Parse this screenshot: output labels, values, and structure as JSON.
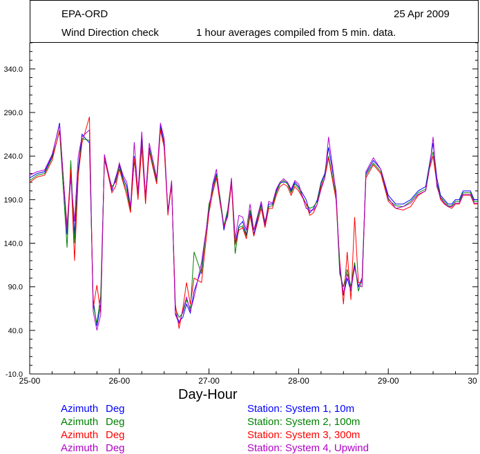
{
  "header": {
    "station": "EPA-ORD",
    "date": "25 Apr 2009",
    "subtitle": "Wind Direction check",
    "description": "1 hour averages compiled from 5 min. data."
  },
  "chart_data": {
    "type": "line",
    "xlabel": "Day-Hour",
    "ylabel": "",
    "x_ticks": [
      "25-00",
      "26-00",
      "27-00",
      "28-00",
      "29-00",
      "30"
    ],
    "y_ticks": [
      "-10.0",
      "40.0",
      "90.0",
      "140.0",
      "190.0",
      "240.0",
      "290.0",
      "340.0"
    ],
    "xlim": [
      0,
      120
    ],
    "ylim": [
      -10,
      370
    ],
    "grid": false,
    "legend": "bottom",
    "series": [
      {
        "name": "Station: System 1, 10m",
        "variable": "Azimuth",
        "unit": "Deg",
        "color": "#0000ff",
        "x": [
          0,
          2,
          4,
          6,
          8,
          10,
          11,
          12,
          13,
          14,
          16,
          17,
          18,
          19,
          20,
          22,
          23,
          24,
          25,
          26,
          27,
          28,
          29,
          30,
          31,
          32,
          34,
          35,
          36,
          37,
          38,
          39,
          40,
          41,
          42,
          43,
          44,
          46,
          48,
          49,
          50,
          51,
          52,
          53,
          54,
          55,
          56,
          57,
          58,
          59,
          60,
          62,
          63,
          64,
          65,
          66,
          67,
          68,
          69,
          70,
          71,
          72,
          74,
          75,
          76,
          77,
          78,
          79,
          80,
          82,
          83,
          84,
          85,
          86,
          87,
          88,
          89,
          90,
          92,
          94,
          96,
          98,
          100,
          102,
          104,
          106,
          107,
          108,
          109,
          110,
          111,
          112,
          113,
          114,
          115,
          116,
          118,
          119,
          120
        ],
        "values": [
          215,
          220,
          222,
          240,
          278,
          150,
          225,
          150,
          225,
          265,
          255,
          75,
          45,
          70,
          240,
          200,
          215,
          230,
          215,
          205,
          180,
          240,
          195,
          260,
          190,
          250,
          210,
          275,
          255,
          175,
          210,
          60,
          50,
          55,
          70,
          60,
          85,
          110,
          180,
          205,
          220,
          190,
          155,
          175,
          210,
          140,
          160,
          165,
          150,
          175,
          150,
          185,
          160,
          185,
          185,
          200,
          210,
          210,
          210,
          200,
          210,
          205,
          190,
          175,
          180,
          190,
          210,
          220,
          250,
          200,
          110,
          80,
          100,
          85,
          115,
          90,
          100,
          220,
          235,
          225,
          195,
          185,
          185,
          190,
          200,
          205,
          230,
          255,
          215,
          195,
          190,
          185,
          185,
          190,
          190,
          200,
          200,
          190,
          190
        ]
      },
      {
        "name": "Station: System 2, 100m",
        "variable": "Azimuth",
        "unit": "Deg",
        "color": "#008000",
        "x": [
          0,
          2,
          4,
          6,
          8,
          10,
          11,
          12,
          13,
          14,
          16,
          17,
          18,
          19,
          20,
          22,
          23,
          24,
          25,
          26,
          27,
          28,
          29,
          30,
          31,
          32,
          34,
          35,
          36,
          37,
          38,
          39,
          40,
          41,
          42,
          43,
          44,
          46,
          48,
          49,
          50,
          51,
          52,
          53,
          54,
          55,
          56,
          57,
          58,
          59,
          60,
          62,
          63,
          64,
          65,
          66,
          67,
          68,
          69,
          70,
          71,
          72,
          74,
          75,
          76,
          77,
          78,
          79,
          80,
          82,
          83,
          84,
          85,
          86,
          87,
          88,
          89,
          90,
          92,
          94,
          96,
          98,
          100,
          102,
          104,
          106,
          107,
          108,
          109,
          110,
          111,
          112,
          113,
          114,
          115,
          116,
          118,
          119,
          120
        ],
        "values": [
          212,
          218,
          220,
          238,
          268,
          135,
          235,
          140,
          220,
          260,
          258,
          70,
          48,
          80,
          235,
          205,
          210,
          228,
          212,
          200,
          178,
          235,
          200,
          255,
          195,
          248,
          212,
          272,
          250,
          178,
          205,
          65,
          55,
          60,
          75,
          65,
          130,
          105,
          185,
          200,
          218,
          192,
          160,
          178,
          212,
          128,
          158,
          160,
          148,
          178,
          155,
          183,
          165,
          182,
          183,
          198,
          208,
          212,
          208,
          198,
          208,
          203,
          185,
          180,
          182,
          188,
          208,
          218,
          240,
          195,
          105,
          90,
          110,
          90,
          118,
          85,
          98,
          218,
          232,
          222,
          190,
          183,
          182,
          188,
          198,
          202,
          228,
          245,
          210,
          193,
          188,
          183,
          183,
          188,
          188,
          198,
          198,
          188,
          188
        ]
      },
      {
        "name": "Station: System 3, 300m",
        "variable": "Azimuth",
        "unit": "Deg",
        "color": "#ff0000",
        "x": [
          0,
          2,
          4,
          6,
          8,
          10,
          11,
          12,
          13,
          14,
          16,
          17,
          18,
          19,
          20,
          22,
          23,
          24,
          25,
          26,
          27,
          28,
          29,
          30,
          31,
          32,
          34,
          35,
          36,
          37,
          38,
          39,
          40,
          41,
          42,
          43,
          44,
          46,
          48,
          49,
          50,
          51,
          52,
          53,
          54,
          55,
          56,
          57,
          58,
          59,
          60,
          62,
          63,
          64,
          65,
          66,
          67,
          68,
          69,
          70,
          71,
          72,
          74,
          75,
          76,
          77,
          78,
          79,
          80,
          82,
          83,
          84,
          85,
          86,
          87,
          88,
          89,
          90,
          92,
          94,
          96,
          98,
          100,
          102,
          104,
          106,
          107,
          108,
          109,
          110,
          111,
          112,
          113,
          114,
          115,
          116,
          118,
          119,
          120
        ],
        "values": [
          210,
          216,
          218,
          235,
          270,
          160,
          225,
          120,
          218,
          255,
          285,
          65,
          92,
          60,
          238,
          198,
          205,
          225,
          210,
          195,
          175,
          238,
          190,
          250,
          185,
          245,
          208,
          270,
          250,
          172,
          208,
          70,
          42,
          65,
          95,
          70,
          100,
          95,
          175,
          198,
          215,
          185,
          160,
          170,
          208,
          138,
          155,
          158,
          145,
          172,
          148,
          180,
          158,
          180,
          180,
          195,
          205,
          208,
          205,
          195,
          205,
          200,
          185,
          172,
          175,
          185,
          205,
          215,
          238,
          190,
          120,
          70,
          130,
          75,
          170,
          95,
          95,
          215,
          230,
          220,
          188,
          180,
          178,
          182,
          195,
          200,
          225,
          240,
          208,
          190,
          185,
          182,
          180,
          185,
          185,
          195,
          195,
          185,
          185
        ]
      },
      {
        "name": "Station: System 4, Upwind",
        "variable": "Azimuth",
        "unit": "Deg",
        "color": "#b000c8",
        "x": [
          0,
          2,
          4,
          6,
          8,
          10,
          11,
          12,
          13,
          14,
          16,
          17,
          18,
          19,
          20,
          22,
          23,
          24,
          25,
          26,
          27,
          28,
          29,
          30,
          31,
          32,
          34,
          35,
          36,
          37,
          38,
          39,
          40,
          41,
          42,
          43,
          44,
          46,
          48,
          49,
          50,
          51,
          52,
          53,
          54,
          55,
          56,
          57,
          58,
          59,
          60,
          62,
          63,
          64,
          65,
          66,
          67,
          68,
          69,
          70,
          71,
          72,
          74,
          75,
          76,
          77,
          78,
          79,
          80,
          82,
          83,
          84,
          85,
          86,
          87,
          88,
          89,
          90,
          92,
          94,
          96,
          98,
          100,
          102,
          104,
          106,
          107,
          108,
          109,
          110,
          111,
          112,
          113,
          114,
          115,
          116,
          118,
          119,
          120
        ],
        "values": [
          218,
          222,
          224,
          242,
          276,
          155,
          215,
          165,
          240,
          262,
          270,
          62,
          40,
          58,
          242,
          202,
          212,
          232,
          218,
          210,
          182,
          256,
          198,
          268,
          192,
          255,
          215,
          278,
          260,
          176,
          212,
          58,
          48,
          62,
          78,
          62,
          78,
          118,
          178,
          208,
          225,
          188,
          158,
          172,
          215,
          145,
          172,
          170,
          155,
          185,
          155,
          188,
          162,
          188,
          186,
          202,
          210,
          214,
          210,
          202,
          212,
          208,
          180,
          178,
          178,
          185,
          202,
          215,
          262,
          198,
          115,
          82,
          105,
          88,
          112,
          92,
          90,
          222,
          238,
          225,
          192,
          180,
          182,
          186,
          196,
          200,
          225,
          262,
          205,
          192,
          186,
          182,
          182,
          186,
          186,
          196,
          196,
          186,
          186
        ]
      }
    ]
  }
}
